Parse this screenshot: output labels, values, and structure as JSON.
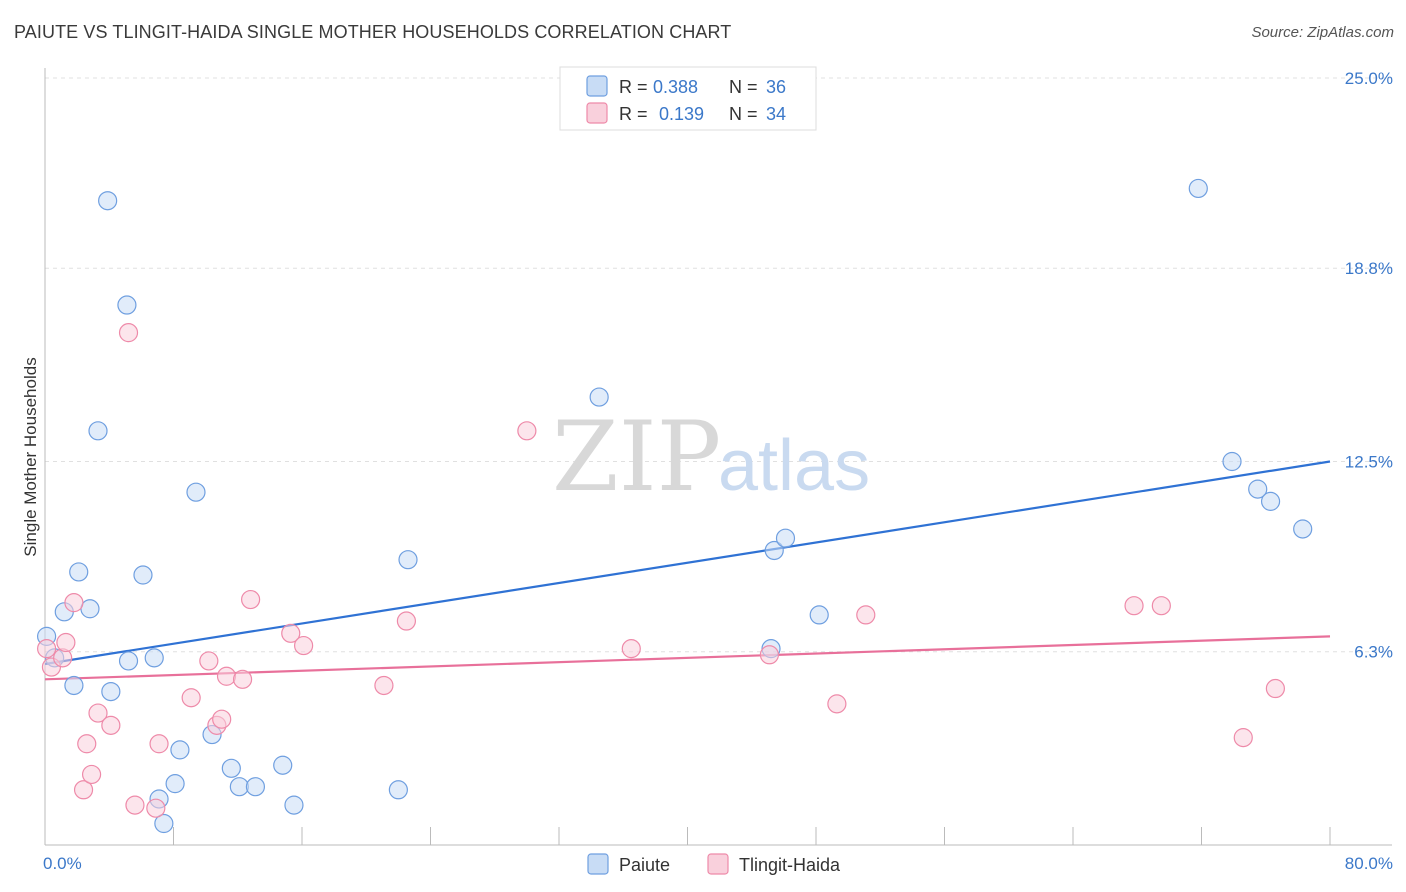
{
  "header": {
    "title": "PAIUTE VS TLINGIT-HAIDA SINGLE MOTHER HOUSEHOLDS CORRELATION CHART",
    "source": "Source: ZipAtlas.com"
  },
  "watermark": {
    "zip": "ZIP",
    "atlas": "atlas"
  },
  "chart_data": {
    "type": "scatter",
    "title": "PAIUTE VS TLINGIT-HAIDA SINGLE MOTHER HOUSEHOLDS CORRELATION CHART",
    "xlabel": "",
    "ylabel": "Single Mother Households",
    "xlim": [
      0,
      80
    ],
    "ylim": [
      0,
      25
    ],
    "x_tick_labels": [
      "0.0%",
      "80.0%"
    ],
    "y_ticks": [
      6.3,
      12.5,
      18.8,
      25.0
    ],
    "y_tick_labels": [
      "6.3%",
      "12.5%",
      "18.8%",
      "25.0%"
    ],
    "grid": true,
    "legend_position": "top-center",
    "colors": {
      "paiute": "#6f9fe0",
      "paiute_fill": "#c8dcf5",
      "tlingit": "#ee8aa9",
      "tlingit_fill": "#f9d0dc",
      "paiute_line": "#2f72d4",
      "tlingit_line": "#e8709a"
    },
    "series": [
      {
        "name": "Paiute",
        "stats": {
          "r_label": "R =",
          "r_value": "0.388",
          "n_label": "N =",
          "n_value": "36"
        },
        "trend": {
          "x": [
            0,
            80
          ],
          "y": [
            5.9,
            12.5
          ]
        },
        "points": [
          [
            0.1,
            6.8
          ],
          [
            0.6,
            6.1
          ],
          [
            1.2,
            7.6
          ],
          [
            1.8,
            5.2
          ],
          [
            2.1,
            8.9
          ],
          [
            2.8,
            7.7
          ],
          [
            3.3,
            13.5
          ],
          [
            3.9,
            21.0
          ],
          [
            4.1,
            5.0
          ],
          [
            5.1,
            17.6
          ],
          [
            5.2,
            6.0
          ],
          [
            6.1,
            8.8
          ],
          [
            6.8,
            6.1
          ],
          [
            7.1,
            1.5
          ],
          [
            7.4,
            0.7
          ],
          [
            8.1,
            2.0
          ],
          [
            8.4,
            3.1
          ],
          [
            9.4,
            11.5
          ],
          [
            10.4,
            3.6
          ],
          [
            11.6,
            2.5
          ],
          [
            12.1,
            1.9
          ],
          [
            13.1,
            1.9
          ],
          [
            14.8,
            2.6
          ],
          [
            15.5,
            1.3
          ],
          [
            22.0,
            1.8
          ],
          [
            22.6,
            9.3
          ],
          [
            34.5,
            14.6
          ],
          [
            45.2,
            6.4
          ],
          [
            45.4,
            9.6
          ],
          [
            46.1,
            10.0
          ],
          [
            48.2,
            7.5
          ],
          [
            71.8,
            21.4
          ],
          [
            73.9,
            12.5
          ],
          [
            75.5,
            11.6
          ],
          [
            76.3,
            11.2
          ],
          [
            78.3,
            10.3
          ]
        ]
      },
      {
        "name": "Tlingit-Haida",
        "stats": {
          "r_label": "R =",
          "r_value": "0.139",
          "n_label": "N =",
          "n_value": "34"
        },
        "trend": {
          "x": [
            0,
            80
          ],
          "y": [
            5.4,
            6.8
          ]
        },
        "points": [
          [
            0.1,
            6.4
          ],
          [
            0.4,
            5.8
          ],
          [
            1.1,
            6.1
          ],
          [
            1.3,
            6.6
          ],
          [
            1.8,
            7.9
          ],
          [
            2.4,
            1.8
          ],
          [
            2.6,
            3.3
          ],
          [
            2.9,
            2.3
          ],
          [
            3.3,
            4.3
          ],
          [
            4.1,
            3.9
          ],
          [
            5.2,
            16.7
          ],
          [
            5.6,
            1.3
          ],
          [
            6.9,
            1.2
          ],
          [
            7.1,
            3.3
          ],
          [
            9.1,
            4.8
          ],
          [
            10.2,
            6.0
          ],
          [
            10.7,
            3.9
          ],
          [
            11.0,
            4.1
          ],
          [
            11.3,
            5.5
          ],
          [
            12.3,
            5.4
          ],
          [
            12.8,
            8.0
          ],
          [
            15.3,
            6.9
          ],
          [
            16.1,
            6.5
          ],
          [
            21.1,
            5.2
          ],
          [
            22.5,
            7.3
          ],
          [
            30.0,
            13.5
          ],
          [
            36.5,
            6.4
          ],
          [
            45.1,
            6.2
          ],
          [
            49.3,
            4.6
          ],
          [
            51.1,
            7.5
          ],
          [
            67.8,
            7.8
          ],
          [
            69.5,
            7.8
          ],
          [
            74.6,
            3.5
          ],
          [
            76.6,
            5.1
          ]
        ]
      }
    ]
  }
}
